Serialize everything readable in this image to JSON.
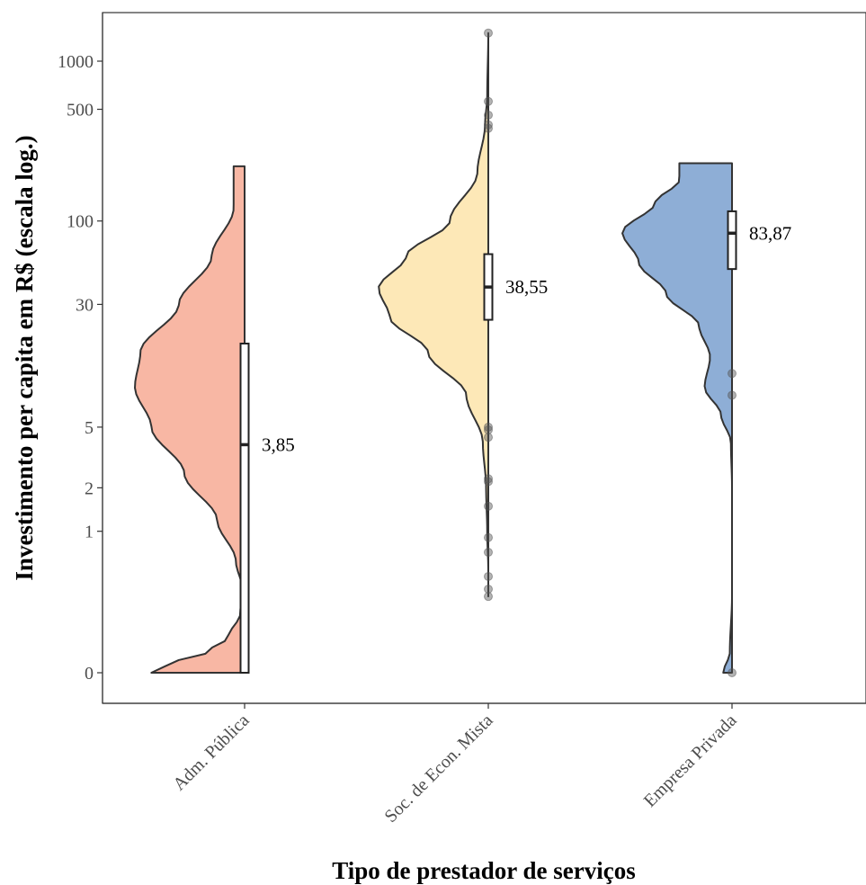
{
  "chart_data": {
    "type": "violin",
    "xlabel": "Tipo de prestador de serviços",
    "ylabel": "Investimento per capita em R$ (escala log.)",
    "y_scale": "log (pseudo-log, includes 0)",
    "grid": false,
    "legend": "none",
    "y_ticks": [
      {
        "value": 0,
        "label": "0"
      },
      {
        "value": 1,
        "label": "1"
      },
      {
        "value": 2,
        "label": "2"
      },
      {
        "value": 5,
        "label": "5"
      },
      {
        "value": 30,
        "label": "30"
      },
      {
        "value": 100,
        "label": "100"
      },
      {
        "value": 500,
        "label": "500"
      },
      {
        "value": 1000,
        "label": "1000"
      }
    ],
    "categories": [
      "Adm. Pública",
      "Soc. de Econ. Mista",
      "Empresa Privada"
    ],
    "groups": [
      {
        "category": "Adm. Pública",
        "color": "#F8B7A4",
        "median": 3.85,
        "median_label": "3,85",
        "q1": 0,
        "q3": 17,
        "min": 0,
        "max": 220,
        "outliers": [],
        "density": [
          [
            0,
            0.85
          ],
          [
            0.02,
            0.7
          ],
          [
            0.05,
            0.35
          ],
          [
            0.1,
            0.15
          ],
          [
            0.2,
            0.04
          ],
          [
            0.35,
            0.02
          ],
          [
            0.6,
            0.08
          ],
          [
            1.2,
            0.25
          ],
          [
            2.5,
            0.55
          ],
          [
            5,
            0.85
          ],
          [
            9,
            1.0
          ],
          [
            15,
            0.95
          ],
          [
            30,
            0.6
          ],
          [
            60,
            0.3
          ],
          [
            120,
            0.1
          ],
          [
            220,
            0.1
          ]
        ]
      },
      {
        "category": "Soc. de Econ. Mista",
        "color": "#FDE8B7",
        "median": 38.55,
        "median_label": "38,55",
        "q1": 24,
        "q3": 62,
        "min": 0.3,
        "max": 1500,
        "outliers": [
          0.3,
          0.35,
          0.45,
          0.7,
          0.9,
          1.5,
          2.2,
          2.3,
          4.3,
          4.8,
          5.0,
          380,
          400,
          460,
          560,
          1500
        ],
        "density": [
          [
            0.3,
            0.0
          ],
          [
            0.5,
            0.0
          ],
          [
            1,
            0.01
          ],
          [
            2,
            0.02
          ],
          [
            4,
            0.05
          ],
          [
            8,
            0.2
          ],
          [
            15,
            0.55
          ],
          [
            25,
            0.9
          ],
          [
            38,
            1.0
          ],
          [
            60,
            0.75
          ],
          [
            100,
            0.35
          ],
          [
            200,
            0.1
          ],
          [
            400,
            0.03
          ],
          [
            600,
            0.01
          ],
          [
            1500,
            0.0
          ]
        ]
      },
      {
        "category": "Empresa Privada",
        "color": "#8EAED6",
        "median": 83.87,
        "median_label": "83,87",
        "q1": 50,
        "q3": 115,
        "min": 0,
        "max": 230,
        "outliers": [
          0,
          8,
          11
        ],
        "density": [
          [
            0,
            0.08
          ],
          [
            0.05,
            0.02
          ],
          [
            0.3,
            0.0
          ],
          [
            2,
            0.0
          ],
          [
            4,
            0.01
          ],
          [
            6,
            0.1
          ],
          [
            9,
            0.25
          ],
          [
            14,
            0.2
          ],
          [
            22,
            0.3
          ],
          [
            35,
            0.6
          ],
          [
            55,
            0.85
          ],
          [
            85,
            1.0
          ],
          [
            130,
            0.7
          ],
          [
            180,
            0.48
          ],
          [
            230,
            0.48
          ]
        ]
      }
    ]
  }
}
